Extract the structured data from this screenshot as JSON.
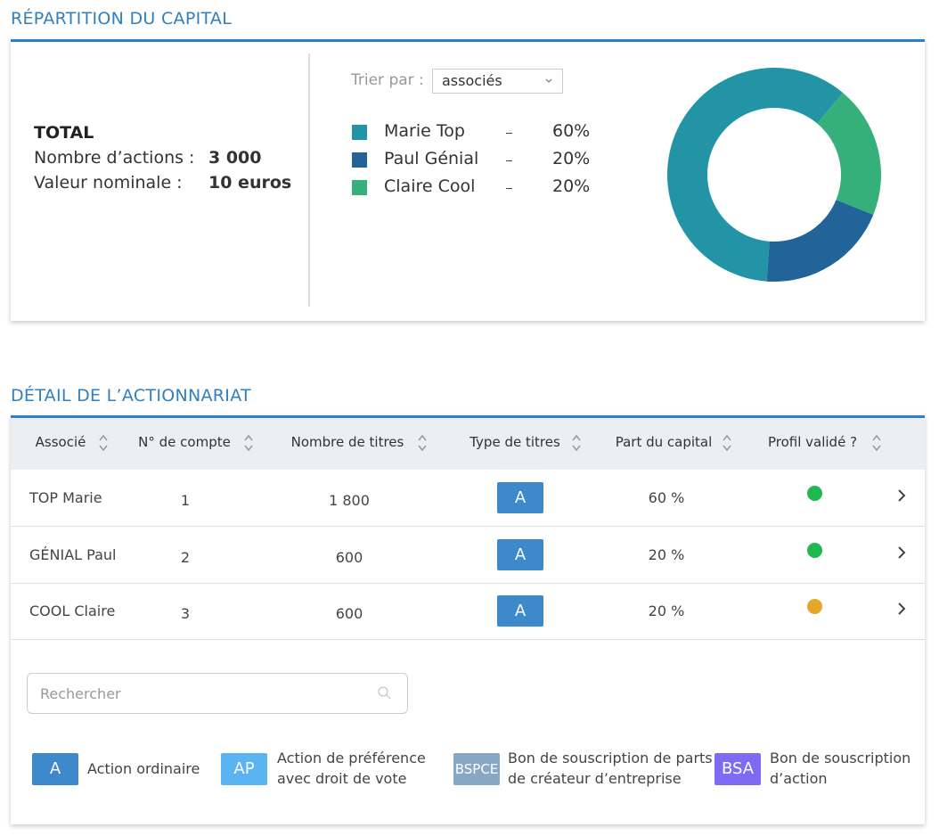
{
  "capital": {
    "title": "RÉPARTITION DU CAPITAL",
    "total_label": "TOTAL",
    "shares_label": "Nombre d’actions :",
    "shares_value": "3 000",
    "nominal_label": "Valeur nominale :",
    "nominal_value": "10 euros",
    "sort_label": "Trier par :",
    "sort_value": "associés"
  },
  "chart_data": {
    "type": "pie",
    "categories": [
      "Marie Top",
      "Paul Génial",
      "Claire Cool"
    ],
    "values": [
      60,
      20,
      20
    ],
    "value_labels": [
      "60%",
      "20%",
      "20%"
    ],
    "colors": [
      "#2394a6",
      "#22639a",
      "#35b07a"
    ]
  },
  "detail": {
    "title": "DÉTAIL DE L’ACTIONNARIAT",
    "columns": [
      "Associé",
      "N° de compte",
      "Nombre de titres",
      "Type de titres",
      "Part du capital",
      "Profil validé ?"
    ],
    "rows": [
      {
        "associe": "TOP Marie",
        "compte": "1",
        "titres": "1 800",
        "type": "A",
        "part": "60 %",
        "status_color": "#1fb84f"
      },
      {
        "associe": "GÉNIAL Paul",
        "compte": "2",
        "titres": "600",
        "type": "A",
        "part": "20 %",
        "status_color": "#1fb84f"
      },
      {
        "associe": "COOL Claire",
        "compte": "3",
        "titres": "600",
        "type": "A",
        "part": "20 %",
        "status_color": "#e3a82a"
      }
    ],
    "search_placeholder": "Rechercher",
    "legend": [
      {
        "code": "A",
        "lines": [
          "Action ordinaire"
        ],
        "color": "#3d89c9"
      },
      {
        "code": "AP",
        "lines": [
          "Action de préférence",
          "avec droit de vote"
        ],
        "color": "#5ab4f2"
      },
      {
        "code": "BSPCE",
        "lines": [
          "Bon de souscription de parts",
          "de créateur d’entreprise"
        ],
        "color": "#88a7c4"
      },
      {
        "code": "BSA",
        "lines": [
          "Bon de souscription",
          "d’action"
        ],
        "color": "#7d6cf3"
      }
    ]
  }
}
